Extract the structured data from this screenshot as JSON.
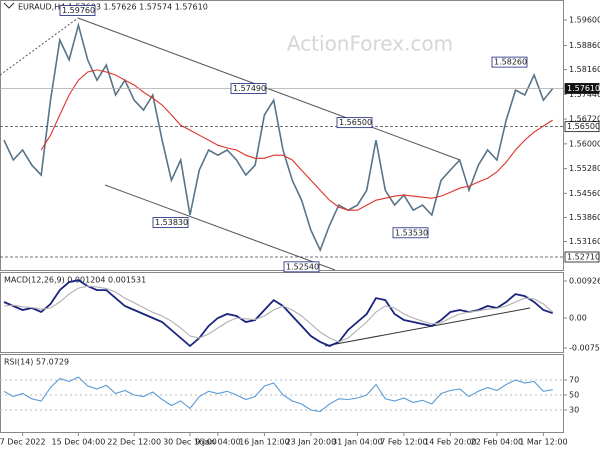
{
  "chart_data": [
    {
      "type": "line",
      "title": "EURAUD,H4 1.57603 1.57626 1.57574 1.57610",
      "watermark": "ActionForex.com",
      "ylim": [
        1.52332,
        1.60182
      ],
      "yticks": [
        {
          "value": 1.596,
          "label": "1.59600"
        },
        {
          "value": 1.5886,
          "label": "1.58860"
        },
        {
          "value": 1.5816,
          "label": "1.58160"
        },
        {
          "value": 1.5744,
          "label": "1.57440"
        },
        {
          "value": 1.5672,
          "label": "1.56720"
        },
        {
          "value": 1.56,
          "label": "1.56000"
        },
        {
          "value": 1.5528,
          "label": "1.55280"
        },
        {
          "value": 1.5456,
          "label": "1.54560"
        },
        {
          "value": 1.5386,
          "label": "1.53860"
        },
        {
          "value": 1.5316,
          "label": "1.53160"
        }
      ],
      "price_labels": [
        {
          "value": 1.5761,
          "label": "1.57610"
        },
        {
          "value": 1.565,
          "label": "1.56500"
        },
        {
          "value": 1.5271,
          "label": "1.52710"
        }
      ],
      "annotations": [
        {
          "value": 1.5976,
          "label": "1.59760"
        },
        {
          "value": 1.5749,
          "label": "1.57490"
        },
        {
          "value": 1.565,
          "label": "1.56500"
        },
        {
          "value": 1.5826,
          "label": "1.58260"
        },
        {
          "value": 1.5383,
          "label": "1.53830"
        },
        {
          "value": 1.5254,
          "label": "1.52540"
        },
        {
          "value": 1.5353,
          "label": "1.53530"
        }
      ],
      "series": [
        {
          "color": "#587488",
          "values": [
            1.5611,
            1.5553,
            1.5582,
            1.5538,
            1.5509,
            1.5727,
            1.5902,
            1.5844,
            1.5945,
            1.5844,
            1.5785,
            1.5829,
            1.5742,
            1.5785,
            1.5727,
            1.5698,
            1.5742,
            1.5611,
            1.5494,
            1.5553,
            1.5393,
            1.5524,
            1.5582,
            1.5567,
            1.5582,
            1.5553,
            1.5509,
            1.5538,
            1.5684,
            1.5727,
            1.5582,
            1.5494,
            1.5436,
            1.5349,
            1.5291,
            1.5363,
            1.5422,
            1.5407,
            1.5422,
            1.5465,
            1.5611,
            1.5465,
            1.5422,
            1.5451,
            1.5407,
            1.5422,
            1.5393,
            1.5494,
            1.5524,
            1.5553,
            1.5465,
            1.5538,
            1.5582,
            1.5553,
            1.5669,
            1.5756,
            1.5742,
            1.58,
            1.5727,
            1.5761
          ]
        },
        {
          "color": "#e0332a",
          "values": [
            null,
            null,
            null,
            null,
            1.5582,
            1.5625,
            1.5684,
            1.5742,
            1.5785,
            1.5809,
            1.5815,
            1.5809,
            1.58,
            1.5785,
            1.5771,
            1.575,
            1.5733,
            1.5713,
            1.5684,
            1.5654,
            1.564,
            1.5625,
            1.5611,
            1.5596,
            1.5588,
            1.5582,
            1.5567,
            1.5558,
            1.5558,
            1.5567,
            1.5567,
            1.5553,
            1.5523,
            1.5494,
            1.5465,
            1.5436,
            1.5416,
            1.5407,
            1.5407,
            1.5422,
            1.5436,
            1.5442,
            1.5448,
            1.5451,
            1.5448,
            1.5445,
            1.5442,
            1.5448,
            1.5459,
            1.5471,
            1.5477,
            1.5489,
            1.55,
            1.5518,
            1.5547,
            1.5582,
            1.5611,
            1.5634,
            1.5652,
            1.5669
          ]
        }
      ]
    },
    {
      "type": "line",
      "title": "MACD(12,26,9) 0.001204 0.001531",
      "ylim": [
        -0.0085,
        0.01152
      ],
      "yticks": [
        0.009263,
        {
          "value": 0,
          "label": "0.00"
        },
        -0.007517
      ],
      "series": [
        {
          "color": "#1a237e",
          "values": [
            0.004,
            0.003,
            0.002,
            0.0025,
            0.0015,
            0.0035,
            0.007,
            0.009,
            0.0095,
            0.008,
            0.007,
            0.007,
            0.005,
            0.003,
            0.002,
            0.001,
            0,
            -0.001,
            -0.003,
            -0.005,
            -0.007,
            -0.005,
            -0.002,
            0,
            0.001,
            0.0005,
            -0.001,
            -0.0005,
            0.002,
            0.0045,
            0.003,
            0.0005,
            -0.002,
            -0.0045,
            -0.006,
            -0.007,
            -0.006,
            -0.003,
            -0.001,
            0.001,
            0.005,
            0.0045,
            0.001,
            -0.0005,
            -0.001,
            -0.0015,
            -0.002,
            -0.0005,
            0.0015,
            0.002,
            0.0015,
            0.002,
            0.003,
            0.0025,
            0.004,
            0.006,
            0.0055,
            0.004,
            0.002,
            0.001204
          ]
        },
        {
          "color": "#b0b0b0",
          "values": [
            0.003,
            0.0032,
            0.0028,
            0.0026,
            0.0022,
            0.0025,
            0.004,
            0.006,
            0.0075,
            0.008,
            0.0078,
            0.0074,
            0.0065,
            0.005,
            0.0038,
            0.0026,
            0.0014,
            0.0005,
            -0.0008,
            -0.0025,
            -0.0045,
            -0.005,
            -0.004,
            -0.0025,
            -0.001,
            0,
            -0.0002,
            -0.0004,
            0.0005,
            0.002,
            0.003,
            0.002,
            0.0005,
            -0.0015,
            -0.0035,
            -0.005,
            -0.006,
            -0.005,
            -0.003,
            -0.001,
            0.0015,
            0.003,
            0.0025,
            0.001,
            0,
            -0.0008,
            -0.0015,
            -0.0012,
            0,
            0.001,
            0.0015,
            0.0018,
            0.0022,
            0.0024,
            0.003,
            0.004,
            0.005,
            0.0048,
            0.0035,
            0.001531
          ]
        }
      ]
    },
    {
      "type": "line",
      "title": "RSI(14) 57.0729",
      "ylim": [
        0,
        100
      ],
      "yticks": [
        70,
        50,
        30
      ],
      "categories": [
        null,
        null,
        "7 Dec 2022",
        null,
        null,
        null,
        null,
        null,
        "15 Dec 04:00",
        null,
        null,
        null,
        null,
        null,
        "22 Dec 12:00",
        null,
        null,
        null,
        null,
        null,
        "30 Dec 16:00",
        null,
        null,
        "9 Jan 04:00",
        null,
        null,
        null,
        null,
        "16 Jan 12:00",
        null,
        null,
        null,
        null,
        "23 Jan 20:00",
        null,
        null,
        null,
        null,
        "31 Jan 04:00",
        null,
        null,
        null,
        null,
        "7 Feb 12:00",
        null,
        null,
        null,
        null,
        "14 Feb 20:00",
        null,
        null,
        null,
        null,
        "22 Feb 04:00",
        null,
        null,
        null,
        null,
        "1 Mar 12:00",
        null
      ],
      "series": [
        {
          "color": "#5b9bd5",
          "values": [
            55,
            48,
            52,
            45,
            42,
            60,
            72,
            68,
            74,
            62,
            58,
            63,
            52,
            56,
            50,
            48,
            54,
            44,
            36,
            42,
            32,
            48,
            55,
            52,
            55,
            50,
            44,
            48,
            62,
            66,
            50,
            42,
            38,
            30,
            28,
            38,
            45,
            44,
            46,
            50,
            64,
            45,
            42,
            46,
            40,
            43,
            38,
            52,
            56,
            58,
            48,
            55,
            60,
            56,
            64,
            70,
            66,
            68,
            55,
            57.0729
          ]
        }
      ]
    }
  ]
}
